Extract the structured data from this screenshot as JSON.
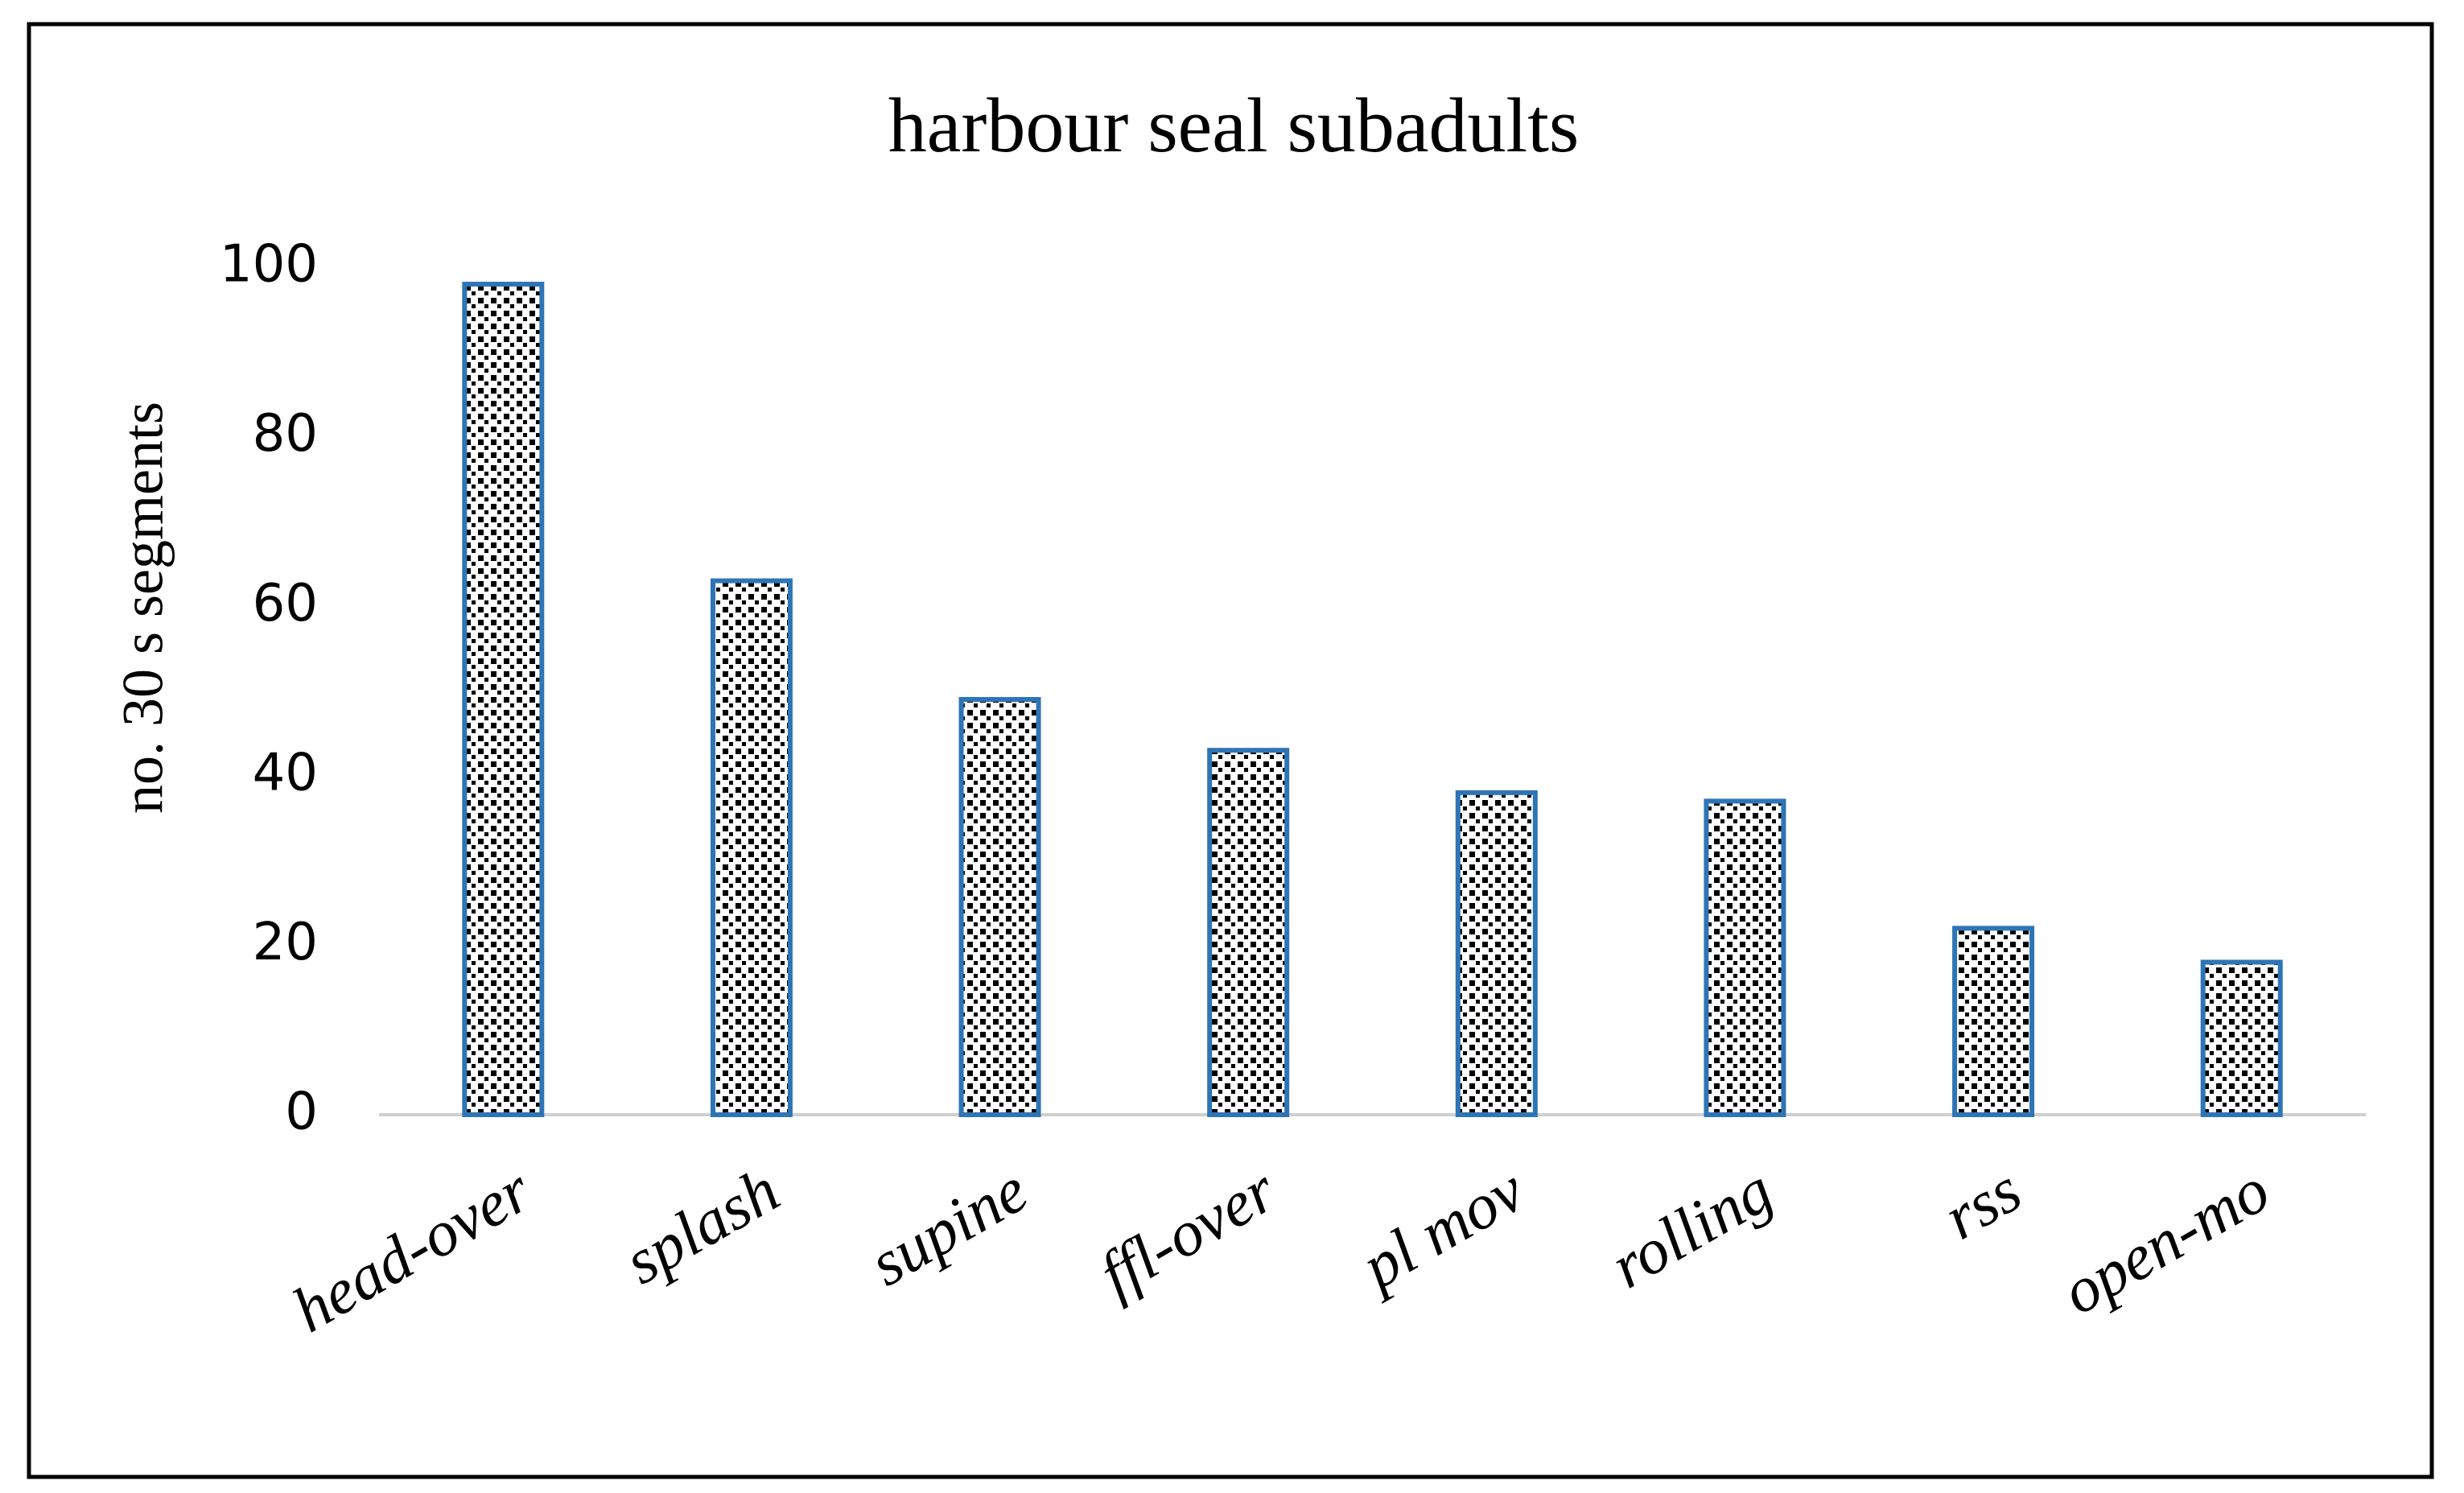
{
  "chart_data": {
    "type": "bar",
    "title": "harbour seal subadults",
    "y_label": "no. 30 s segments",
    "categories": [
      "head-over",
      "splash",
      "supine",
      "ffl-over",
      "pl mov",
      "rolling",
      "rss",
      "open-mo"
    ],
    "values": [
      98,
      63,
      49,
      43,
      38,
      37,
      22,
      18
    ],
    "color": "#2e75b6",
    "ylim": [
      0,
      100
    ],
    "yticks": [
      0,
      20,
      40,
      60,
      80,
      100
    ],
    "grid": false
  }
}
